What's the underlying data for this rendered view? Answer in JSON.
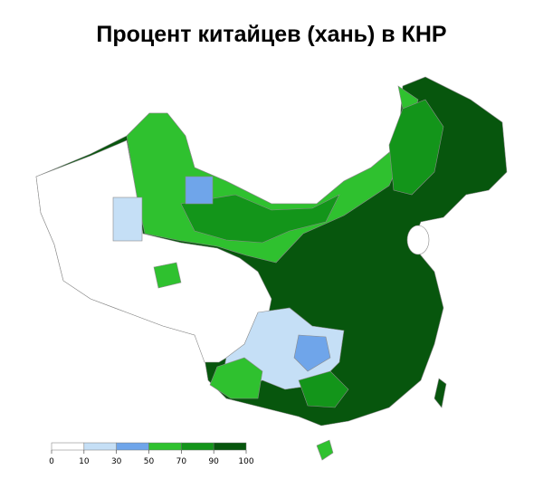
{
  "title": "Процент китайцев (хань) в КНР",
  "legend": {
    "ticks": [
      0,
      10,
      30,
      50,
      70,
      90,
      100
    ],
    "colors": [
      "#ffffff",
      "#c5dff6",
      "#6fa5ea",
      "#2fc12f",
      "#13951a",
      "#07560d"
    ]
  }
}
